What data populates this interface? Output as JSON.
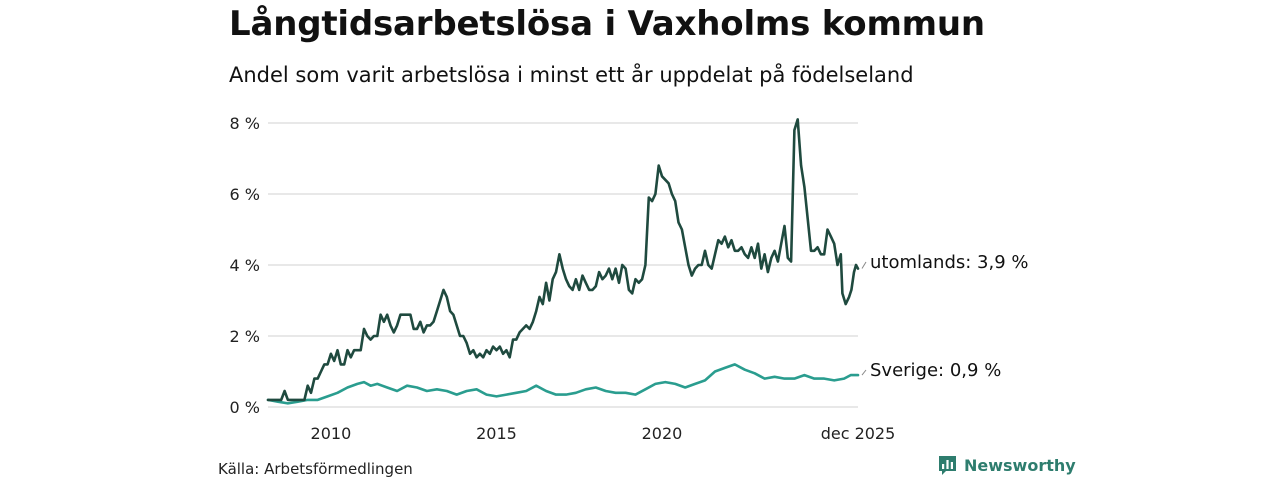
{
  "colors": {
    "utomlands": "#1f4a3f",
    "sverige": "#2a9d8f",
    "grid": "#d9d9d9",
    "brand": "#2e7d6e"
  },
  "chart_data": {
    "type": "line",
    "title": "Långtidsarbetslösa i Vaxholms kommun",
    "subtitle": "Andel som varit arbetslösa i minst ett år uppdelat på födelseland",
    "ylim": [
      0,
      8
    ],
    "xlim": [
      2008.1,
      2025.92
    ],
    "yticks": [
      0,
      2,
      4,
      6,
      8
    ],
    "ytick_labels": [
      "0 %",
      "2 %",
      "4 %",
      "6 %",
      "8 %"
    ],
    "xticks": [
      2010,
      2015,
      2020,
      2025.92
    ],
    "xtick_labels": [
      "2010",
      "2015",
      "2020",
      "dec 2025"
    ],
    "grid": true,
    "series": [
      {
        "name": "utomlands",
        "label": "utomlands: 3,9 %",
        "points": [
          [
            2008.1,
            0.2
          ],
          [
            2008.3,
            0.2
          ],
          [
            2008.5,
            0.2
          ],
          [
            2008.6,
            0.45
          ],
          [
            2008.7,
            0.2
          ],
          [
            2008.9,
            0.2
          ],
          [
            2009.1,
            0.2
          ],
          [
            2009.2,
            0.2
          ],
          [
            2009.3,
            0.6
          ],
          [
            2009.4,
            0.4
          ],
          [
            2009.5,
            0.8
          ],
          [
            2009.6,
            0.8
          ],
          [
            2009.7,
            1.0
          ],
          [
            2009.8,
            1.2
          ],
          [
            2009.9,
            1.2
          ],
          [
            2010.0,
            1.5
          ],
          [
            2010.1,
            1.3
          ],
          [
            2010.2,
            1.6
          ],
          [
            2010.3,
            1.2
          ],
          [
            2010.4,
            1.2
          ],
          [
            2010.5,
            1.6
          ],
          [
            2010.6,
            1.4
          ],
          [
            2010.7,
            1.6
          ],
          [
            2010.8,
            1.6
          ],
          [
            2010.9,
            1.6
          ],
          [
            2011.0,
            2.2
          ],
          [
            2011.1,
            2.0
          ],
          [
            2011.2,
            1.9
          ],
          [
            2011.3,
            2.0
          ],
          [
            2011.4,
            2.0
          ],
          [
            2011.5,
            2.6
          ],
          [
            2011.6,
            2.4
          ],
          [
            2011.7,
            2.6
          ],
          [
            2011.8,
            2.3
          ],
          [
            2011.9,
            2.1
          ],
          [
            2012.0,
            2.3
          ],
          [
            2012.1,
            2.6
          ],
          [
            2012.3,
            2.6
          ],
          [
            2012.4,
            2.6
          ],
          [
            2012.5,
            2.2
          ],
          [
            2012.6,
            2.2
          ],
          [
            2012.7,
            2.4
          ],
          [
            2012.8,
            2.1
          ],
          [
            2012.9,
            2.3
          ],
          [
            2013.0,
            2.3
          ],
          [
            2013.1,
            2.4
          ],
          [
            2013.2,
            2.7
          ],
          [
            2013.3,
            3.0
          ],
          [
            2013.4,
            3.3
          ],
          [
            2013.5,
            3.1
          ],
          [
            2013.6,
            2.7
          ],
          [
            2013.7,
            2.6
          ],
          [
            2013.8,
            2.3
          ],
          [
            2013.9,
            2.0
          ],
          [
            2014.0,
            2.0
          ],
          [
            2014.1,
            1.8
          ],
          [
            2014.2,
            1.5
          ],
          [
            2014.3,
            1.6
          ],
          [
            2014.4,
            1.4
          ],
          [
            2014.5,
            1.5
          ],
          [
            2014.6,
            1.4
          ],
          [
            2014.7,
            1.6
          ],
          [
            2014.8,
            1.5
          ],
          [
            2014.9,
            1.7
          ],
          [
            2015.0,
            1.6
          ],
          [
            2015.1,
            1.7
          ],
          [
            2015.2,
            1.5
          ],
          [
            2015.3,
            1.6
          ],
          [
            2015.4,
            1.4
          ],
          [
            2015.5,
            1.9
          ],
          [
            2015.6,
            1.9
          ],
          [
            2015.7,
            2.1
          ],
          [
            2015.8,
            2.2
          ],
          [
            2015.9,
            2.3
          ],
          [
            2016.0,
            2.2
          ],
          [
            2016.1,
            2.4
          ],
          [
            2016.2,
            2.7
          ],
          [
            2016.3,
            3.1
          ],
          [
            2016.4,
            2.9
          ],
          [
            2016.5,
            3.5
          ],
          [
            2016.6,
            3.0
          ],
          [
            2016.7,
            3.6
          ],
          [
            2016.8,
            3.8
          ],
          [
            2016.9,
            4.3
          ],
          [
            2017.0,
            3.9
          ],
          [
            2017.1,
            3.6
          ],
          [
            2017.2,
            3.4
          ],
          [
            2017.3,
            3.3
          ],
          [
            2017.4,
            3.6
          ],
          [
            2017.5,
            3.3
          ],
          [
            2017.6,
            3.7
          ],
          [
            2017.7,
            3.5
          ],
          [
            2017.8,
            3.3
          ],
          [
            2017.9,
            3.3
          ],
          [
            2018.0,
            3.4
          ],
          [
            2018.1,
            3.8
          ],
          [
            2018.2,
            3.6
          ],
          [
            2018.3,
            3.7
          ],
          [
            2018.4,
            3.9
          ],
          [
            2018.5,
            3.6
          ],
          [
            2018.6,
            3.9
          ],
          [
            2018.7,
            3.5
          ],
          [
            2018.8,
            4.0
          ],
          [
            2018.9,
            3.9
          ],
          [
            2019.0,
            3.3
          ],
          [
            2019.1,
            3.2
          ],
          [
            2019.2,
            3.6
          ],
          [
            2019.3,
            3.5
          ],
          [
            2019.4,
            3.6
          ],
          [
            2019.5,
            4.0
          ],
          [
            2019.6,
            5.9
          ],
          [
            2019.7,
            5.8
          ],
          [
            2019.8,
            6.0
          ],
          [
            2019.9,
            6.8
          ],
          [
            2020.0,
            6.5
          ],
          [
            2020.1,
            6.4
          ],
          [
            2020.2,
            6.3
          ],
          [
            2020.3,
            6.0
          ],
          [
            2020.4,
            5.8
          ],
          [
            2020.5,
            5.2
          ],
          [
            2020.6,
            5.0
          ],
          [
            2020.7,
            4.5
          ],
          [
            2020.8,
            4.0
          ],
          [
            2020.9,
            3.7
          ],
          [
            2021.0,
            3.9
          ],
          [
            2021.1,
            4.0
          ],
          [
            2021.2,
            4.0
          ],
          [
            2021.3,
            4.4
          ],
          [
            2021.4,
            4.0
          ],
          [
            2021.5,
            3.9
          ],
          [
            2021.6,
            4.3
          ],
          [
            2021.7,
            4.7
          ],
          [
            2021.8,
            4.6
          ],
          [
            2021.9,
            4.8
          ],
          [
            2022.0,
            4.5
          ],
          [
            2022.1,
            4.7
          ],
          [
            2022.2,
            4.4
          ],
          [
            2022.3,
            4.4
          ],
          [
            2022.4,
            4.5
          ],
          [
            2022.5,
            4.3
          ],
          [
            2022.6,
            4.2
          ],
          [
            2022.7,
            4.5
          ],
          [
            2022.8,
            4.2
          ],
          [
            2022.9,
            4.6
          ],
          [
            2023.0,
            3.9
          ],
          [
            2023.1,
            4.3
          ],
          [
            2023.2,
            3.8
          ],
          [
            2023.3,
            4.2
          ],
          [
            2023.4,
            4.4
          ],
          [
            2023.5,
            4.1
          ],
          [
            2023.6,
            4.6
          ],
          [
            2023.7,
            5.1
          ],
          [
            2023.8,
            4.2
          ],
          [
            2023.9,
            4.1
          ],
          [
            2024.0,
            7.8
          ],
          [
            2024.1,
            8.1
          ],
          [
            2024.2,
            6.8
          ],
          [
            2024.3,
            6.2
          ],
          [
            2024.4,
            5.3
          ],
          [
            2024.5,
            4.4
          ],
          [
            2024.6,
            4.4
          ],
          [
            2024.7,
            4.5
          ],
          [
            2024.8,
            4.3
          ],
          [
            2024.9,
            4.3
          ],
          [
            2025.0,
            5.0
          ],
          [
            2025.1,
            4.8
          ],
          [
            2025.2,
            4.6
          ],
          [
            2025.3,
            4.0
          ],
          [
            2025.4,
            4.3
          ],
          [
            2025.45,
            3.2
          ],
          [
            2025.55,
            2.9
          ],
          [
            2025.65,
            3.1
          ],
          [
            2025.72,
            3.3
          ],
          [
            2025.8,
            3.8
          ],
          [
            2025.86,
            4.0
          ],
          [
            2025.92,
            3.9
          ]
        ]
      },
      {
        "name": "Sverige",
        "label": "Sverige: 0,9 %",
        "points": [
          [
            2008.1,
            0.2
          ],
          [
            2008.4,
            0.15
          ],
          [
            2008.7,
            0.1
          ],
          [
            2009.0,
            0.15
          ],
          [
            2009.3,
            0.2
          ],
          [
            2009.6,
            0.2
          ],
          [
            2009.9,
            0.3
          ],
          [
            2010.2,
            0.4
          ],
          [
            2010.5,
            0.55
          ],
          [
            2010.8,
            0.65
          ],
          [
            2011.0,
            0.7
          ],
          [
            2011.2,
            0.6
          ],
          [
            2011.4,
            0.65
          ],
          [
            2011.7,
            0.55
          ],
          [
            2012.0,
            0.45
          ],
          [
            2012.3,
            0.6
          ],
          [
            2012.6,
            0.55
          ],
          [
            2012.9,
            0.45
          ],
          [
            2013.2,
            0.5
          ],
          [
            2013.5,
            0.45
          ],
          [
            2013.8,
            0.35
          ],
          [
            2014.1,
            0.45
          ],
          [
            2014.4,
            0.5
          ],
          [
            2014.7,
            0.35
          ],
          [
            2015.0,
            0.3
          ],
          [
            2015.3,
            0.35
          ],
          [
            2015.6,
            0.4
          ],
          [
            2015.9,
            0.45
          ],
          [
            2016.2,
            0.6
          ],
          [
            2016.5,
            0.45
          ],
          [
            2016.8,
            0.35
          ],
          [
            2017.1,
            0.35
          ],
          [
            2017.4,
            0.4
          ],
          [
            2017.7,
            0.5
          ],
          [
            2018.0,
            0.55
          ],
          [
            2018.3,
            0.45
          ],
          [
            2018.6,
            0.4
          ],
          [
            2018.9,
            0.4
          ],
          [
            2019.2,
            0.35
          ],
          [
            2019.5,
            0.5
          ],
          [
            2019.8,
            0.65
          ],
          [
            2020.1,
            0.7
          ],
          [
            2020.4,
            0.65
          ],
          [
            2020.7,
            0.55
          ],
          [
            2021.0,
            0.65
          ],
          [
            2021.3,
            0.75
          ],
          [
            2021.6,
            1.0
          ],
          [
            2021.9,
            1.1
          ],
          [
            2022.2,
            1.2
          ],
          [
            2022.5,
            1.05
          ],
          [
            2022.8,
            0.95
          ],
          [
            2023.1,
            0.8
          ],
          [
            2023.4,
            0.85
          ],
          [
            2023.7,
            0.8
          ],
          [
            2024.0,
            0.8
          ],
          [
            2024.3,
            0.9
          ],
          [
            2024.6,
            0.8
          ],
          [
            2024.9,
            0.8
          ],
          [
            2025.2,
            0.75
          ],
          [
            2025.5,
            0.8
          ],
          [
            2025.7,
            0.9
          ],
          [
            2025.92,
            0.9
          ]
        ]
      }
    ]
  },
  "source": "Källa: Arbetsförmedlingen",
  "brand": "Newsworthy",
  "brand_icon": "bar-chart-icon"
}
